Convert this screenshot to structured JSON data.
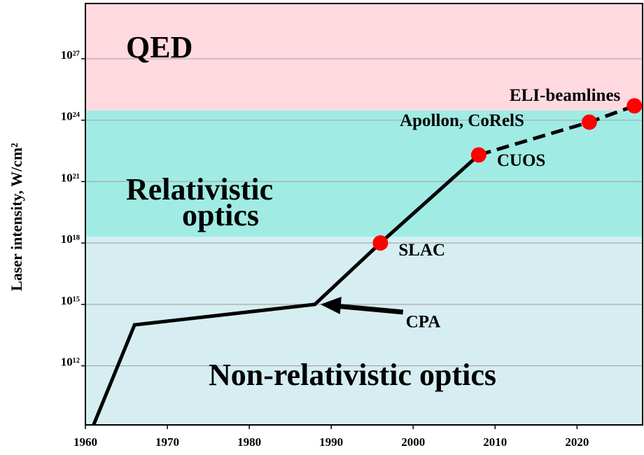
{
  "chart_data": {
    "type": "line",
    "ylabel": "Laser intensity, W/cm²",
    "log_y": true,
    "grid": true,
    "xlim": [
      1960,
      2028
    ],
    "ylim": [
      1300000000.0,
      5e+29
    ],
    "xticks": [
      1960,
      1970,
      1980,
      1990,
      2000,
      2010,
      2020
    ],
    "yticks": [
      {
        "value": 1000000000000.0,
        "label": "10¹²"
      },
      {
        "value": 1000000000000000.0,
        "label": "10¹⁵"
      },
      {
        "value": 1e+18,
        "label": "10¹⁸"
      },
      {
        "value": 1e+21,
        "label": "10²¹"
      },
      {
        "value": 1e+24,
        "label": "10²⁴"
      },
      {
        "value": 1e+27,
        "label": "10²⁷"
      }
    ],
    "regions": [
      {
        "lines": [
          "Non-relativistic optics"
        ],
        "from": 1300000000.0,
        "to": 2e+18,
        "color": "#d6eef2"
      },
      {
        "lines": [
          "Relativistic",
          "optics"
        ],
        "from": 2e+18,
        "to": 3e+24,
        "color": "#a0ece4"
      },
      {
        "lines": [
          "QED"
        ],
        "from": 3e+24,
        "to": 5e+29,
        "color": "#ffd9e0"
      }
    ],
    "series": [
      {
        "color": "#000000",
        "style": "solid",
        "x": [
          1961,
          1966,
          1988,
          1996,
          2008
        ],
        "values": [
          1300000000.0,
          100000000000000.0,
          1000000000000000.0,
          1e+18,
          2e+22
        ]
      },
      {
        "color": "#000000",
        "style": "dashed",
        "x": [
          2008,
          2021.5,
          2027
        ],
        "values": [
          2e+22,
          8e+23,
          5e+24
        ]
      }
    ],
    "points": {
      "color": "#ff0000",
      "x": [
        1996,
        2008,
        2021.5,
        2027
      ],
      "values": [
        1e+18,
        2e+22,
        8e+23,
        5e+24
      ],
      "labels": [
        "SLAC",
        "CUOS",
        "Apollon, CoRelS",
        "ELI-beamlines"
      ]
    },
    "annotation": {
      "text": "CPA",
      "x": 1988,
      "y": 1000000000000000.0
    }
  }
}
